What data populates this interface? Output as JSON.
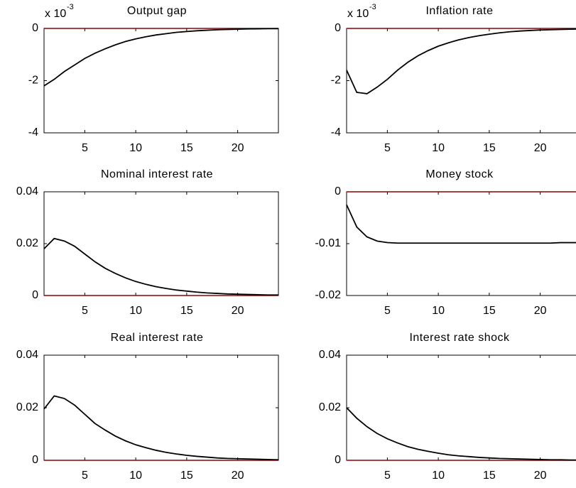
{
  "chart_data": [
    {
      "type": "line",
      "title": "Output gap",
      "y_exponent_base": "x 10",
      "y_exponent_power": "-3",
      "x": [
        1,
        2,
        3,
        4,
        5,
        6,
        7,
        8,
        9,
        10,
        11,
        12,
        13,
        14,
        15,
        16,
        17,
        18,
        19,
        20,
        21,
        22,
        23,
        24
      ],
      "values": [
        -0.0022,
        -0.00195,
        -0.00165,
        -0.0014,
        -0.00115,
        -0.00095,
        -0.00078,
        -0.00063,
        -0.0005,
        -0.0004,
        -0.00032,
        -0.00025,
        -0.0002,
        -0.00015,
        -0.00012,
        -9e-05,
        -7e-05,
        -5e-05,
        -4e-05,
        -3e-05,
        -2e-05,
        -1.5e-05,
        -1e-05,
        -8e-06
      ],
      "color": "#000000",
      "hline": 0,
      "hline_color": "#8b0000",
      "xlim": [
        1,
        24
      ],
      "xticks": [
        5,
        10,
        15,
        20
      ],
      "ylim": [
        -0.004,
        0
      ],
      "yticks": [
        {
          "value": -0.004,
          "label": "-4"
        },
        {
          "value": -0.002,
          "label": "-2"
        },
        0
      ]
    },
    {
      "type": "line",
      "title": "Inflation rate",
      "y_exponent_base": "x 10",
      "y_exponent_power": "-3",
      "x": [
        1,
        2,
        3,
        4,
        5,
        6,
        7,
        8,
        9,
        10,
        11,
        12,
        13,
        14,
        15,
        16,
        17,
        18,
        19,
        20,
        21,
        22,
        23,
        24
      ],
      "values": [
        -0.0016,
        -0.00245,
        -0.0025,
        -0.00225,
        -0.00195,
        -0.0016,
        -0.0013,
        -0.00105,
        -0.00085,
        -0.00068,
        -0.00055,
        -0.00044,
        -0.00035,
        -0.00028,
        -0.00022,
        -0.00017,
        -0.00013,
        -0.0001,
        -8e-05,
        -6e-05,
        -5e-05,
        -4e-05,
        -3e-05,
        -2e-05
      ],
      "color": "#000000",
      "hline": 0,
      "hline_color": "#8b0000",
      "xlim": [
        1,
        24
      ],
      "xticks": [
        5,
        10,
        15,
        20
      ],
      "ylim": [
        -0.004,
        0
      ],
      "yticks": [
        {
          "value": -0.004,
          "label": "-4"
        },
        {
          "value": -0.002,
          "label": "-2"
        },
        0
      ]
    },
    {
      "type": "line",
      "title": "Nominal interest rate",
      "x": [
        1,
        2,
        3,
        4,
        5,
        6,
        7,
        8,
        9,
        10,
        11,
        12,
        13,
        14,
        15,
        16,
        17,
        18,
        19,
        20,
        21,
        22,
        23,
        24
      ],
      "values": [
        0.018,
        0.022,
        0.021,
        0.019,
        0.016,
        0.013,
        0.0105,
        0.0085,
        0.0068,
        0.0054,
        0.0043,
        0.0034,
        0.0027,
        0.0021,
        0.0017,
        0.0013,
        0.001,
        0.0008,
        0.0006,
        0.0005,
        0.0004,
        0.0003,
        0.0002,
        0.0002
      ],
      "color": "#000000",
      "hline": 0,
      "hline_color": "#8b0000",
      "xlim": [
        1,
        24
      ],
      "xticks": [
        5,
        10,
        15,
        20
      ],
      "ylim": [
        0,
        0.04
      ],
      "yticks": [
        0,
        0.02,
        0.04
      ]
    },
    {
      "type": "line",
      "title": "Money stock",
      "x": [
        1,
        2,
        3,
        4,
        5,
        6,
        7,
        8,
        9,
        10,
        11,
        12,
        13,
        14,
        15,
        16,
        17,
        18,
        19,
        20,
        21,
        22,
        23,
        24
      ],
      "values": [
        -0.0025,
        -0.0068,
        -0.0087,
        -0.0095,
        -0.0098,
        -0.0099,
        -0.0099,
        -0.0099,
        -0.0099,
        -0.0099,
        -0.0099,
        -0.0099,
        -0.0099,
        -0.0099,
        -0.0099,
        -0.0099,
        -0.0099,
        -0.0099,
        -0.0099,
        -0.0099,
        -0.0099,
        -0.0098,
        -0.0098,
        -0.0098
      ],
      "color": "#000000",
      "hline": 0,
      "hline_color": "#8b0000",
      "xlim": [
        1,
        24
      ],
      "xticks": [
        5,
        10,
        15,
        20
      ],
      "ylim": [
        -0.02,
        0
      ],
      "yticks": [
        -0.02,
        -0.01,
        0
      ]
    },
    {
      "type": "line",
      "title": "Real interest rate",
      "x": [
        1,
        2,
        3,
        4,
        5,
        6,
        7,
        8,
        9,
        10,
        11,
        12,
        13,
        14,
        15,
        16,
        17,
        18,
        19,
        20,
        21,
        22,
        23,
        24
      ],
      "values": [
        0.0195,
        0.0245,
        0.0235,
        0.021,
        0.0175,
        0.014,
        0.0115,
        0.0092,
        0.0074,
        0.0059,
        0.0048,
        0.0038,
        0.003,
        0.0024,
        0.0019,
        0.0015,
        0.0012,
        0.0009,
        0.0007,
        0.0006,
        0.0005,
        0.0004,
        0.0003,
        0.0002
      ],
      "color": "#000000",
      "hline": 0,
      "hline_color": "#8b0000",
      "xlim": [
        1,
        24
      ],
      "xticks": [
        5,
        10,
        15,
        20
      ],
      "ylim": [
        0,
        0.04
      ],
      "yticks": [
        0,
        0.02,
        0.04
      ]
    },
    {
      "type": "line",
      "title": "Interest rate shock",
      "x": [
        1,
        2,
        3,
        4,
        5,
        6,
        7,
        8,
        9,
        10,
        11,
        12,
        13,
        14,
        15,
        16,
        17,
        18,
        19,
        20,
        21,
        22,
        23,
        24
      ],
      "values": [
        0.02,
        0.016,
        0.0128,
        0.0102,
        0.0082,
        0.0066,
        0.0052,
        0.0042,
        0.0034,
        0.0027,
        0.0021,
        0.0017,
        0.0014,
        0.0011,
        0.0009,
        0.0007,
        0.0006,
        0.0005,
        0.0004,
        0.0003,
        0.0002,
        0.0002,
        0.0001,
        0.0001
      ],
      "color": "#000000",
      "hline": 0,
      "hline_color": "#8b0000",
      "xlim": [
        1,
        24
      ],
      "xticks": [
        5,
        10,
        15,
        20
      ],
      "ylim": [
        0,
        0.04
      ],
      "yticks": [
        0,
        0.02,
        0.04
      ]
    }
  ]
}
